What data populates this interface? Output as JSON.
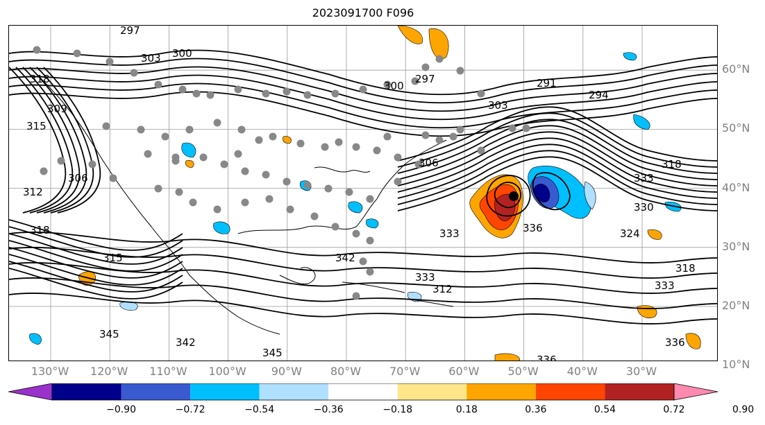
{
  "title": "2023091700 F096",
  "lat_labels": [
    {
      "text": "60°N",
      "value": 60
    },
    {
      "text": "50°N",
      "value": 50
    },
    {
      "text": "40°N",
      "value": 40
    },
    {
      "text": "30°N",
      "value": 30
    },
    {
      "text": "20°N",
      "value": 20
    },
    {
      "text": "10°N",
      "value": 10
    }
  ],
  "lon_labels": [
    {
      "text": "130°W",
      "value": -130
    },
    {
      "text": "120°W",
      "value": -120
    },
    {
      "text": "110°W",
      "value": -110
    },
    {
      "text": "100°W",
      "value": -100
    },
    {
      "text": "90°W",
      "value": -90
    },
    {
      "text": "80°W",
      "value": -80
    },
    {
      "text": "70°W",
      "value": -70
    },
    {
      "text": "60°W",
      "value": -60
    },
    {
      "text": "50°W",
      "value": -50
    },
    {
      "text": "40°W",
      "value": -40
    },
    {
      "text": "30°W",
      "value": -30
    }
  ],
  "contour_labels": [
    "297",
    "303",
    "300",
    "318",
    "309",
    "315",
    "306",
    "312",
    "318",
    "315",
    "345",
    "342",
    "345",
    "300",
    "297",
    "291",
    "294",
    "303",
    "306",
    "318",
    "333",
    "330",
    "324",
    "333",
    "336",
    "333",
    "318",
    "333",
    "336",
    "342",
    "312",
    "336"
  ],
  "colorbar": {
    "colors": [
      "#9932cc",
      "#00008b",
      "#3a5bd0",
      "#00bfff",
      "#b0e0ff",
      "#ffffff",
      "#ffe68a",
      "#ffa500",
      "#ff4500",
      "#b22222",
      "#ff8ab0"
    ],
    "ticks": [
      "−0.90",
      "−0.72",
      "−0.54",
      "−0.36",
      "−0.18",
      "0.18",
      "0.36",
      "0.54",
      "0.72",
      "0.90"
    ]
  }
}
